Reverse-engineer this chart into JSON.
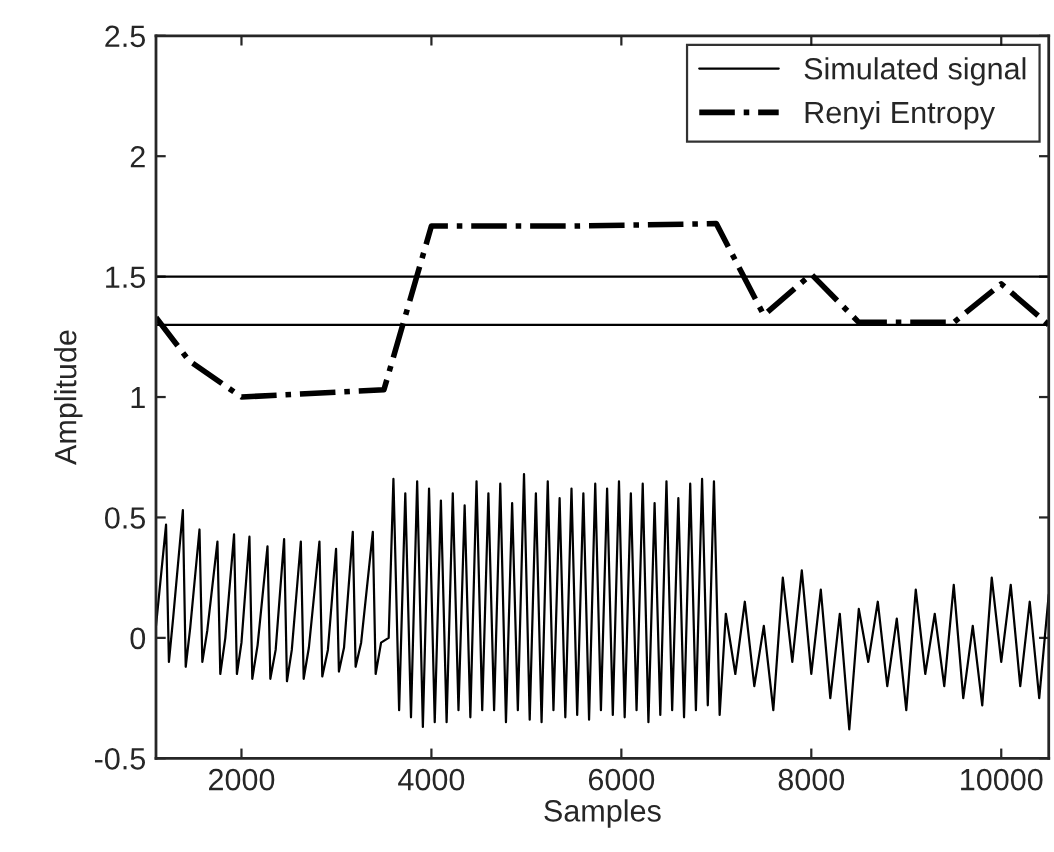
{
  "chart_data": {
    "type": "line",
    "xlabel": "Samples",
    "ylabel": "Amplitude",
    "xlim": [
      1100,
      10500
    ],
    "xticks": [
      2000,
      4000,
      6000,
      8000,
      10000
    ],
    "ylim": [
      -0.5,
      2.5
    ],
    "yticks": [
      -0.5,
      0,
      0.5,
      1,
      1.5,
      2,
      2.5
    ],
    "grid": false,
    "legend": "top right",
    "marker": "none",
    "ref_lines": [
      {
        "axis": "y",
        "value": 1.3,
        "color": "#000000",
        "line_style": "solid"
      },
      {
        "axis": "y",
        "value": 1.5,
        "color": "#000000",
        "line_style": "solid"
      }
    ],
    "series": [
      {
        "name": "Simulated signal",
        "color": "#000000",
        "line_style": "solid",
        "x": [
          1100,
          1206,
          1236,
          1280,
          1383,
          1413,
          1460,
          1558,
          1588,
          1640,
          1747,
          1777,
          1830,
          1922,
          1952,
          2000,
          2084,
          2114,
          2170,
          2274,
          2304,
          2360,
          2449,
          2479,
          2530,
          2625,
          2655,
          2710,
          2821,
          2851,
          2910,
          2996,
          3026,
          3080,
          3172,
          3202,
          3260,
          3383,
          3413,
          3470,
          3550,
          3600,
          3660,
          3725,
          3785,
          3850,
          3910,
          3975,
          4035,
          4100,
          4160,
          4225,
          4285,
          4350,
          4410,
          4475,
          4535,
          4600,
          4660,
          4725,
          4785,
          4850,
          4910,
          4975,
          5035,
          5100,
          5160,
          5225,
          5285,
          5350,
          5410,
          5475,
          5535,
          5600,
          5660,
          5725,
          5785,
          5850,
          5910,
          5975,
          6035,
          6100,
          6160,
          6225,
          6285,
          6350,
          6410,
          6475,
          6535,
          6600,
          6660,
          6725,
          6785,
          6850,
          6910,
          6975,
          7035,
          7100,
          7200,
          7300,
          7400,
          7500,
          7600,
          7700,
          7800,
          7900,
          8000,
          8100,
          8200,
          8300,
          8400,
          8500,
          8600,
          8700,
          8800,
          8900,
          9000,
          9100,
          9200,
          9300,
          9400,
          9500,
          9600,
          9700,
          9800,
          9900,
          10000,
          10100,
          10200,
          10300,
          10400,
          10500
        ],
        "values": [
          0.05,
          0.47,
          -0.1,
          0.08,
          0.53,
          -0.12,
          0.04,
          0.45,
          -0.1,
          0.03,
          0.4,
          -0.15,
          0.0,
          0.43,
          -0.15,
          -0.02,
          0.42,
          -0.17,
          -0.03,
          0.38,
          -0.17,
          -0.05,
          0.41,
          -0.18,
          -0.05,
          0.4,
          -0.17,
          -0.04,
          0.4,
          -0.16,
          -0.05,
          0.37,
          -0.14,
          -0.04,
          0.44,
          -0.12,
          -0.02,
          0.44,
          -0.15,
          -0.02,
          0.0,
          0.66,
          -0.3,
          0.6,
          -0.33,
          0.65,
          -0.37,
          0.62,
          -0.35,
          0.57,
          -0.35,
          0.6,
          -0.3,
          0.55,
          -0.33,
          0.65,
          -0.3,
          0.6,
          -0.3,
          0.64,
          -0.35,
          0.56,
          -0.3,
          0.68,
          -0.34,
          0.6,
          -0.35,
          0.65,
          -0.3,
          0.58,
          -0.33,
          0.62,
          -0.32,
          0.6,
          -0.34,
          0.64,
          -0.3,
          0.62,
          -0.32,
          0.65,
          -0.33,
          0.6,
          -0.3,
          0.64,
          -0.35,
          0.56,
          -0.32,
          0.65,
          -0.3,
          0.58,
          -0.33,
          0.64,
          -0.3,
          0.66,
          -0.28,
          0.65,
          -0.32,
          0.1,
          -0.15,
          0.15,
          -0.2,
          0.05,
          -0.3,
          0.25,
          -0.1,
          0.28,
          -0.15,
          0.2,
          -0.25,
          0.1,
          -0.38,
          0.12,
          -0.1,
          0.15,
          -0.2,
          0.08,
          -0.3,
          0.2,
          -0.15,
          0.1,
          -0.2,
          0.22,
          -0.25,
          0.05,
          -0.28,
          0.25,
          -0.1,
          0.22,
          -0.2,
          0.15,
          -0.25,
          0.18
        ]
      },
      {
        "name": "Renyi Entropy",
        "color": "#000000",
        "line_style": "dashdot",
        "x": [
          1100,
          1450,
          2000,
          3500,
          4000,
          5500,
          7000,
          7500,
          8000,
          8500,
          9500,
          10000,
          10500
        ],
        "values": [
          1.33,
          1.15,
          1.0,
          1.03,
          1.71,
          1.71,
          1.72,
          1.34,
          1.51,
          1.31,
          1.31,
          1.47,
          1.3
        ]
      }
    ]
  }
}
